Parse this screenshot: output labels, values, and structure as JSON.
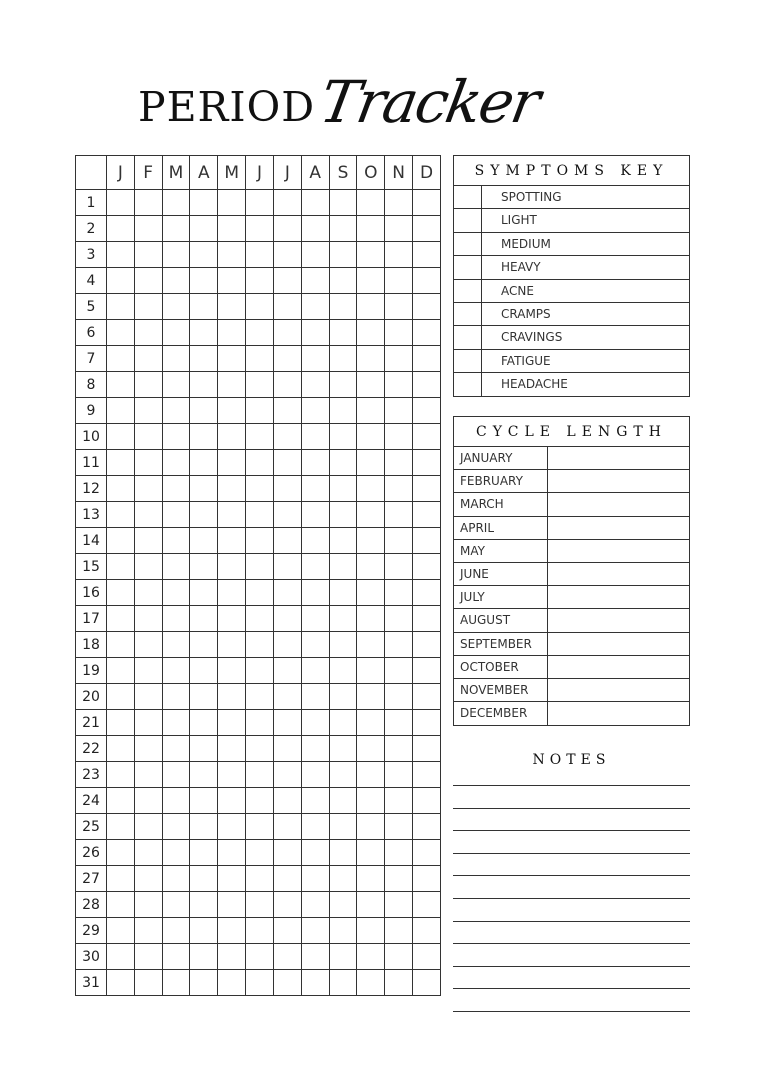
{
  "title": {
    "main": "PERIOD",
    "script": "Tracker"
  },
  "tracker": {
    "months": [
      "J",
      "F",
      "M",
      "A",
      "M",
      "J",
      "J",
      "A",
      "S",
      "O",
      "N",
      "D"
    ],
    "days": [
      "1",
      "2",
      "3",
      "4",
      "5",
      "6",
      "7",
      "8",
      "9",
      "10",
      "11",
      "12",
      "13",
      "14",
      "15",
      "16",
      "17",
      "18",
      "19",
      "20",
      "21",
      "22",
      "23",
      "24",
      "25",
      "26",
      "27",
      "28",
      "29",
      "30",
      "31"
    ]
  },
  "symptoms_key": {
    "title": "SYMPTOMS KEY",
    "items": [
      "SPOTTING",
      "LIGHT",
      "MEDIUM",
      "HEAVY",
      "ACNE",
      "CRAMPS",
      "CRAVINGS",
      "FATIGUE",
      "HEADACHE"
    ]
  },
  "cycle_length": {
    "title": "CYCLE LENGTH",
    "months": [
      "JANUARY",
      "FEBRUARY",
      "MARCH",
      "APRIL",
      "MAY",
      "JUNE",
      "JULY",
      "AUGUST",
      "SEPTEMBER",
      "OCTOBER",
      "NOVEMBER",
      "DECEMBER"
    ]
  },
  "notes": {
    "title": "NOTES"
  }
}
